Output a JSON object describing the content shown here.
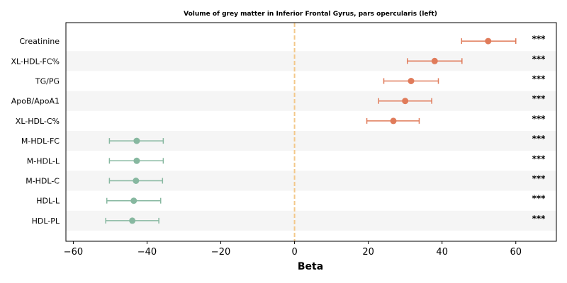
{
  "chart_data": {
    "type": "forest",
    "title": "Volume of grey matter in Inferior Frontal Gyrus, pars opercularis (left)",
    "xlabel": "Beta",
    "ylabel": "",
    "xlim": [
      -62,
      71
    ],
    "xticks": [
      -60,
      -40,
      -20,
      0,
      20,
      40,
      60
    ],
    "xtick_labels": [
      "−60",
      "−40",
      "−20",
      "0",
      "20",
      "40",
      "60"
    ],
    "reference_line": 0,
    "row_shading": "alternating",
    "colors": {
      "positive": "#e07b5a",
      "negative": "#87b8a0",
      "reference": "#f3c88a",
      "shade": "#f5f5f5"
    },
    "rows": [
      {
        "label": "Creatinine",
        "beta": 52.5,
        "ci_low": 45.3,
        "ci_high": 60.0,
        "sig": "***"
      },
      {
        "label": "XL-HDL-FC%",
        "beta": 38.0,
        "ci_low": 30.6,
        "ci_high": 45.4,
        "sig": "***"
      },
      {
        "label": "TG/PG",
        "beta": 31.6,
        "ci_low": 24.2,
        "ci_high": 39.0,
        "sig": "***"
      },
      {
        "label": "ApoB/ApoA1",
        "beta": 30.0,
        "ci_low": 22.8,
        "ci_high": 37.2,
        "sig": "***"
      },
      {
        "label": "XL-HDL-C%",
        "beta": 26.8,
        "ci_low": 19.6,
        "ci_high": 33.8,
        "sig": "***"
      },
      {
        "label": "M-HDL-FC",
        "beta": -42.8,
        "ci_low": -50.2,
        "ci_high": -35.6,
        "sig": "***"
      },
      {
        "label": "M-HDL-L",
        "beta": -42.8,
        "ci_low": -50.2,
        "ci_high": -35.6,
        "sig": "***"
      },
      {
        "label": "M-HDL-C",
        "beta": -43.0,
        "ci_low": -50.2,
        "ci_high": -35.8,
        "sig": "***"
      },
      {
        "label": "HDL-L",
        "beta": -43.6,
        "ci_low": -50.9,
        "ci_high": -36.3,
        "sig": "***"
      },
      {
        "label": "HDL-PL",
        "beta": -44.0,
        "ci_low": -51.2,
        "ci_high": -36.8,
        "sig": "***"
      }
    ]
  }
}
